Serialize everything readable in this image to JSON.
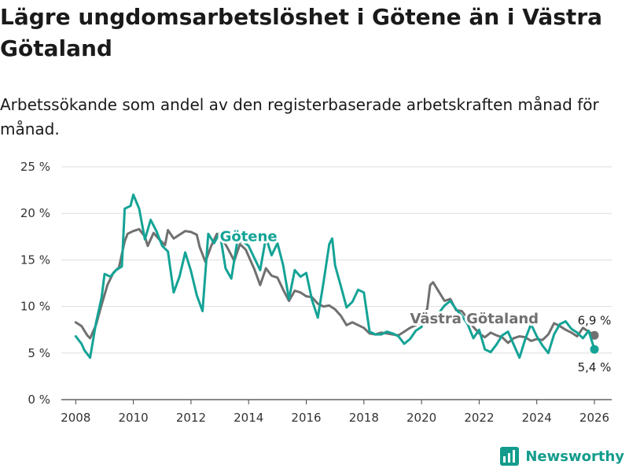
{
  "title": "Lägre ungdomsarbetslöshet i Götene än i Västra Götaland",
  "subtitle": "Arbetssökande som andel av den registerbaserade arbetskraften månad för månad.",
  "brand": "Newsworthy",
  "colors": {
    "gotene": "#14a396",
    "vg": "#707070",
    "grid": "#dddddd"
  },
  "chart_data": {
    "type": "line",
    "ylim": [
      0,
      25
    ],
    "xlim": [
      2007.5,
      2026.6
    ],
    "y_ticks": [
      0,
      5,
      10,
      15,
      20,
      25
    ],
    "y_tick_labels": [
      "0 %",
      "5 %",
      "10 %",
      "15 %",
      "20 %",
      "25 %"
    ],
    "x_ticks": [
      2008,
      2010,
      2012,
      2014,
      2016,
      2018,
      2020,
      2022,
      2024,
      2026
    ],
    "x_tick_labels": [
      "2008",
      "2010",
      "2012",
      "2014",
      "2016",
      "2018",
      "2020",
      "2022",
      "2024",
      "2026"
    ],
    "series": [
      {
        "name": "Västra Götaland",
        "key": "vg",
        "end_label": "6,9 %",
        "points": [
          [
            2008.0,
            8.3
          ],
          [
            2008.2,
            7.9
          ],
          [
            2008.4,
            6.9
          ],
          [
            2008.5,
            6.6
          ],
          [
            2008.7,
            8.0
          ],
          [
            2008.9,
            10.2
          ],
          [
            2009.1,
            12.3
          ],
          [
            2009.3,
            13.6
          ],
          [
            2009.5,
            14.2
          ],
          [
            2009.7,
            17.0
          ],
          [
            2009.8,
            17.8
          ],
          [
            2010.0,
            18.1
          ],
          [
            2010.2,
            18.3
          ],
          [
            2010.4,
            17.5
          ],
          [
            2010.5,
            16.5
          ],
          [
            2010.7,
            17.9
          ],
          [
            2010.9,
            17.2
          ],
          [
            2011.1,
            16.6
          ],
          [
            2011.2,
            18.2
          ],
          [
            2011.4,
            17.3
          ],
          [
            2011.6,
            17.7
          ],
          [
            2011.8,
            18.1
          ],
          [
            2012.0,
            18.0
          ],
          [
            2012.2,
            17.7
          ],
          [
            2012.3,
            16.4
          ],
          [
            2012.5,
            14.8
          ],
          [
            2012.7,
            16.5
          ],
          [
            2012.9,
            17.8
          ],
          [
            2013.1,
            17.2
          ],
          [
            2013.3,
            16.1
          ],
          [
            2013.5,
            14.9
          ],
          [
            2013.7,
            16.7
          ],
          [
            2013.9,
            16.1
          ],
          [
            2014.0,
            15.4
          ],
          [
            2014.2,
            14.0
          ],
          [
            2014.4,
            12.3
          ],
          [
            2014.6,
            14.1
          ],
          [
            2014.8,
            13.3
          ],
          [
            2015.0,
            13.1
          ],
          [
            2015.2,
            11.8
          ],
          [
            2015.4,
            10.6
          ],
          [
            2015.6,
            11.7
          ],
          [
            2015.8,
            11.5
          ],
          [
            2016.0,
            11.1
          ],
          [
            2016.2,
            11.0
          ],
          [
            2016.4,
            10.3
          ],
          [
            2016.6,
            10.0
          ],
          [
            2016.8,
            10.1
          ],
          [
            2017.0,
            9.7
          ],
          [
            2017.2,
            9.0
          ],
          [
            2017.4,
            8.0
          ],
          [
            2017.6,
            8.3
          ],
          [
            2017.8,
            8.0
          ],
          [
            2018.0,
            7.7
          ],
          [
            2018.2,
            7.1
          ],
          [
            2018.4,
            7.0
          ],
          [
            2018.6,
            7.2
          ],
          [
            2018.8,
            7.1
          ],
          [
            2019.0,
            7.0
          ],
          [
            2019.2,
            6.9
          ],
          [
            2019.4,
            7.3
          ],
          [
            2019.6,
            7.7
          ],
          [
            2019.8,
            8.0
          ],
          [
            2020.0,
            8.3
          ],
          [
            2020.2,
            9.8
          ],
          [
            2020.3,
            12.3
          ],
          [
            2020.4,
            12.6
          ],
          [
            2020.6,
            11.6
          ],
          [
            2020.8,
            10.6
          ],
          [
            2021.0,
            10.8
          ],
          [
            2021.2,
            9.6
          ],
          [
            2021.4,
            9.5
          ],
          [
            2021.6,
            8.7
          ],
          [
            2021.8,
            7.8
          ],
          [
            2022.0,
            7.1
          ],
          [
            2022.2,
            6.7
          ],
          [
            2022.4,
            7.2
          ],
          [
            2022.6,
            6.9
          ],
          [
            2022.8,
            6.7
          ],
          [
            2023.0,
            6.1
          ],
          [
            2023.2,
            6.6
          ],
          [
            2023.4,
            6.8
          ],
          [
            2023.6,
            6.7
          ],
          [
            2023.8,
            6.3
          ],
          [
            2024.0,
            6.5
          ],
          [
            2024.2,
            6.4
          ],
          [
            2024.4,
            7.0
          ],
          [
            2024.6,
            8.2
          ],
          [
            2024.8,
            7.9
          ],
          [
            2025.0,
            7.5
          ],
          [
            2025.2,
            7.2
          ],
          [
            2025.4,
            6.8
          ],
          [
            2025.6,
            7.7
          ],
          [
            2025.8,
            7.3
          ],
          [
            2026.0,
            6.9
          ]
        ]
      },
      {
        "name": "Götene",
        "key": "gotene",
        "end_label": "5,4 %",
        "points": [
          [
            2008.0,
            6.8
          ],
          [
            2008.2,
            6.0
          ],
          [
            2008.3,
            5.3
          ],
          [
            2008.5,
            4.5
          ],
          [
            2008.7,
            8.2
          ],
          [
            2008.9,
            11.0
          ],
          [
            2009.0,
            13.5
          ],
          [
            2009.2,
            13.2
          ],
          [
            2009.4,
            13.9
          ],
          [
            2009.6,
            14.3
          ],
          [
            2009.7,
            20.5
          ],
          [
            2009.9,
            20.8
          ],
          [
            2010.0,
            22.0
          ],
          [
            2010.2,
            20.5
          ],
          [
            2010.4,
            17.2
          ],
          [
            2010.6,
            19.3
          ],
          [
            2010.8,
            18.1
          ],
          [
            2011.0,
            16.5
          ],
          [
            2011.2,
            15.9
          ],
          [
            2011.4,
            11.5
          ],
          [
            2011.6,
            13.2
          ],
          [
            2011.8,
            15.8
          ],
          [
            2012.0,
            13.8
          ],
          [
            2012.2,
            11.2
          ],
          [
            2012.4,
            9.5
          ],
          [
            2012.6,
            17.8
          ],
          [
            2012.8,
            16.8
          ],
          [
            2013.0,
            17.9
          ],
          [
            2013.2,
            14.1
          ],
          [
            2013.4,
            13.0
          ],
          [
            2013.6,
            16.9
          ],
          [
            2013.8,
            17.0
          ],
          [
            2014.0,
            16.5
          ],
          [
            2014.2,
            15.2
          ],
          [
            2014.4,
            13.9
          ],
          [
            2014.6,
            17.4
          ],
          [
            2014.8,
            15.5
          ],
          [
            2015.0,
            16.8
          ],
          [
            2015.2,
            14.4
          ],
          [
            2015.4,
            10.8
          ],
          [
            2015.6,
            13.9
          ],
          [
            2015.8,
            13.2
          ],
          [
            2016.0,
            13.6
          ],
          [
            2016.2,
            10.7
          ],
          [
            2016.4,
            8.8
          ],
          [
            2016.6,
            12.6
          ],
          [
            2016.8,
            16.7
          ],
          [
            2016.9,
            17.3
          ],
          [
            2017.0,
            14.4
          ],
          [
            2017.2,
            12.2
          ],
          [
            2017.4,
            9.9
          ],
          [
            2017.6,
            10.5
          ],
          [
            2017.8,
            11.8
          ],
          [
            2018.0,
            11.5
          ],
          [
            2018.2,
            7.3
          ],
          [
            2018.4,
            7.0
          ],
          [
            2018.6,
            7.0
          ],
          [
            2018.8,
            7.3
          ],
          [
            2019.0,
            7.1
          ],
          [
            2019.2,
            6.8
          ],
          [
            2019.4,
            6.0
          ],
          [
            2019.6,
            6.5
          ],
          [
            2019.8,
            7.4
          ],
          [
            2020.0,
            7.8
          ],
          [
            2020.2,
            9.3
          ],
          [
            2020.4,
            8.5
          ],
          [
            2020.6,
            9.3
          ],
          [
            2020.8,
            10.1
          ],
          [
            2021.0,
            10.6
          ],
          [
            2021.2,
            9.7
          ],
          [
            2021.4,
            9.0
          ],
          [
            2021.6,
            8.1
          ],
          [
            2021.8,
            6.6
          ],
          [
            2022.0,
            7.5
          ],
          [
            2022.2,
            5.4
          ],
          [
            2022.4,
            5.1
          ],
          [
            2022.6,
            5.9
          ],
          [
            2022.8,
            6.9
          ],
          [
            2023.0,
            7.3
          ],
          [
            2023.2,
            5.9
          ],
          [
            2023.4,
            4.5
          ],
          [
            2023.6,
            6.5
          ],
          [
            2023.8,
            8.1
          ],
          [
            2024.0,
            6.8
          ],
          [
            2024.2,
            5.8
          ],
          [
            2024.4,
            5.0
          ],
          [
            2024.6,
            7.0
          ],
          [
            2024.8,
            8.1
          ],
          [
            2025.0,
            8.4
          ],
          [
            2025.2,
            7.6
          ],
          [
            2025.4,
            7.2
          ],
          [
            2025.6,
            6.6
          ],
          [
            2025.8,
            7.4
          ],
          [
            2026.0,
            5.4
          ]
        ]
      }
    ],
    "annotations": [
      {
        "text": "Götene",
        "series": "gotene",
        "x": 2013.0,
        "y": 17.0
      },
      {
        "text": "Västra Götaland",
        "series": "vg",
        "x": 2019.6,
        "y": 8.2
      }
    ]
  }
}
